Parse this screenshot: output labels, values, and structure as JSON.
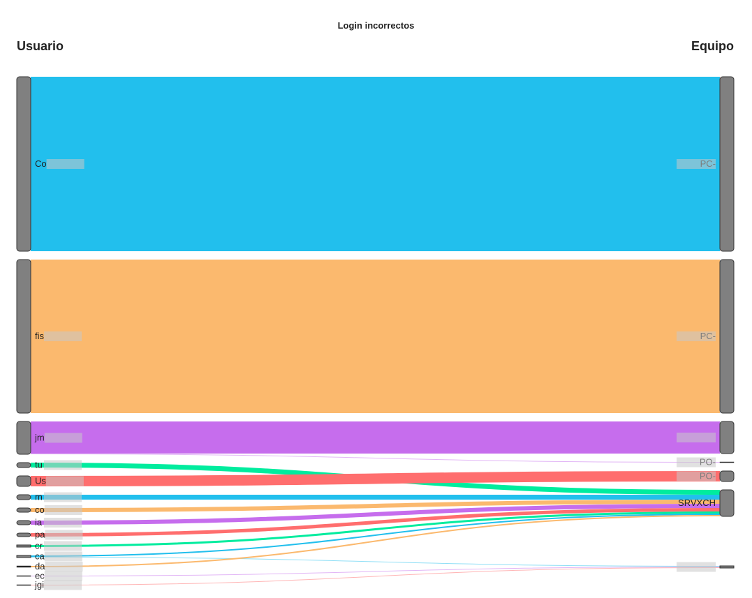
{
  "title": "Login incorrectos",
  "left_header": "Usuario",
  "right_header": "Equipo",
  "colors": {
    "node": "#808080",
    "node_stroke": "#333333",
    "blue": "#22bfed",
    "orange": "#fbb96e",
    "purple": "#c66ded",
    "green": "#00ec9e",
    "red": "#ff6e6e"
  },
  "left_nodes": [
    {
      "id": "L0",
      "label": "Co",
      "color": "blue"
    },
    {
      "id": "L1",
      "label": "fis",
      "color": "orange"
    },
    {
      "id": "L2",
      "label": "jm",
      "color": "purple"
    },
    {
      "id": "L3",
      "label": "tu",
      "color": "green"
    },
    {
      "id": "L4",
      "label": "Us",
      "color": "red"
    },
    {
      "id": "L5",
      "label": "m",
      "color": "blue"
    },
    {
      "id": "L6",
      "label": "co",
      "color": "orange"
    },
    {
      "id": "L7",
      "label": "ia",
      "color": "purple"
    },
    {
      "id": "L8",
      "label": "pa",
      "color": "red"
    },
    {
      "id": "L9",
      "label": "cr",
      "color": "green"
    },
    {
      "id": "L10",
      "label": "ca",
      "color": "blue"
    },
    {
      "id": "L11",
      "label": "da",
      "color": "orange"
    },
    {
      "id": "L12",
      "label": "ec",
      "color": "purple"
    },
    {
      "id": "L13",
      "label": "jgi",
      "color": "red"
    }
  ],
  "right_nodes": [
    {
      "id": "R0",
      "label": "PC-"
    },
    {
      "id": "R1",
      "label": "PC-"
    },
    {
      "id": "R2",
      "label": ""
    },
    {
      "id": "R3",
      "label": "PO-"
    },
    {
      "id": "R4",
      "label": "PO-"
    },
    {
      "id": "R5",
      "label": "SRVXCH"
    },
    {
      "id": "R6",
      "label": ""
    }
  ],
  "links": [
    {
      "source": "L0",
      "target": "R0",
      "value": 250
    },
    {
      "source": "L1",
      "target": "R1",
      "value": 220
    },
    {
      "source": "L2",
      "target": "R2",
      "value": 46
    },
    {
      "source": "L2",
      "target": "R3",
      "value": 1
    },
    {
      "source": "L3",
      "target": "R5",
      "value": 7
    },
    {
      "source": "L4",
      "target": "R4",
      "value": 15
    },
    {
      "source": "L5",
      "target": "R5",
      "value": 7
    },
    {
      "source": "L6",
      "target": "R5",
      "value": 6
    },
    {
      "source": "L7",
      "target": "R5",
      "value": 6
    },
    {
      "source": "L8",
      "target": "R5",
      "value": 5
    },
    {
      "source": "L9",
      "target": "R5",
      "value": 3
    },
    {
      "source": "L10",
      "target": "R5",
      "value": 2
    },
    {
      "source": "L10",
      "target": "R6",
      "value": 1
    },
    {
      "source": "L11",
      "target": "R5",
      "value": 2
    },
    {
      "source": "L12",
      "target": "R6",
      "value": 1
    },
    {
      "source": "L13",
      "target": "R6",
      "value": 1
    }
  ]
}
